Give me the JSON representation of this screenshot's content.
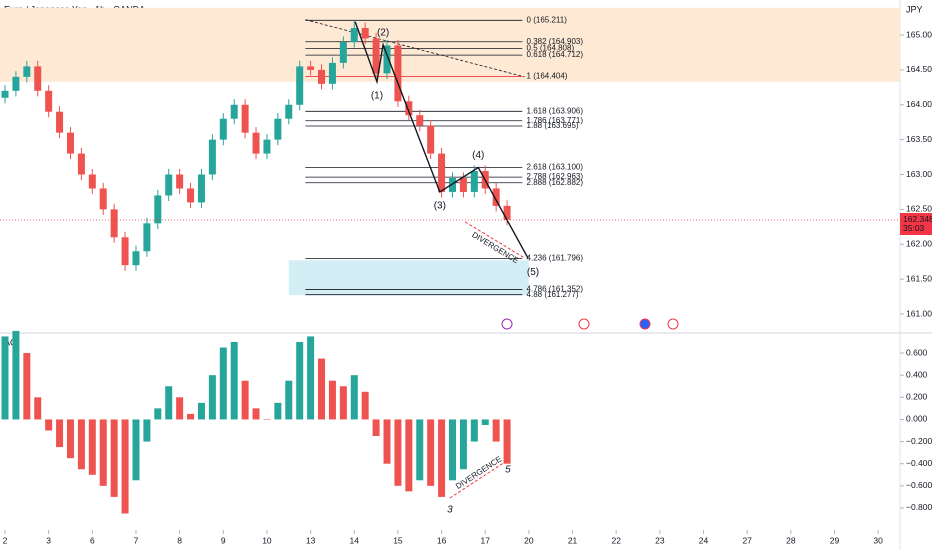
{
  "header": {
    "title": "Euro / Japanese Yen · 1h · OANDA",
    "currency": "JPY"
  },
  "chart_data": [
    {
      "type": "candlestick",
      "xlim": [
        -0.1145,
        20.5
      ],
      "ylim": [
        160.742,
        165.502
      ],
      "xticks": [
        {
          "value": 0,
          "label": "2"
        },
        {
          "value": 1,
          "label": "3"
        },
        {
          "value": 2,
          "label": "6"
        },
        {
          "value": 3,
          "label": "7"
        },
        {
          "value": 4,
          "label": "8"
        },
        {
          "value": 5,
          "label": "9"
        },
        {
          "value": 6,
          "label": "10"
        },
        {
          "value": 7,
          "label": "13"
        },
        {
          "value": 8,
          "label": "14"
        },
        {
          "value": 9,
          "label": "15"
        },
        {
          "value": 10,
          "label": "16"
        },
        {
          "value": 11,
          "label": "17"
        },
        {
          "value": 12,
          "label": "20"
        },
        {
          "value": 13,
          "label": "21"
        },
        {
          "value": 14,
          "label": "22"
        },
        {
          "value": 15,
          "label": "23"
        },
        {
          "value": 16,
          "label": "24"
        },
        {
          "value": 17,
          "label": "27"
        },
        {
          "value": 18,
          "label": "28"
        },
        {
          "value": 19,
          "label": "29"
        },
        {
          "value": 20,
          "label": "30"
        }
      ],
      "yticks": [
        {
          "value": 165,
          "label": "165.000"
        },
        {
          "value": 164.5,
          "label": "164.500"
        },
        {
          "value": 164,
          "label": "164.000"
        },
        {
          "value": 163.5,
          "label": "163.500"
        },
        {
          "value": 163,
          "label": "163.000"
        },
        {
          "value": 162.5,
          "label": "162.500"
        },
        {
          "value": 162,
          "label": "162.000"
        },
        {
          "value": 161.5,
          "label": "161.500"
        },
        {
          "value": 161,
          "label": "161.000"
        }
      ],
      "up_color": "#26a69a",
      "down_color": "#ef5350",
      "x": [
        0,
        0.25,
        0.5,
        0.75,
        1,
        1.25,
        1.5,
        1.75,
        2,
        2.25,
        2.5,
        2.75,
        3,
        3.25,
        3.5,
        3.75,
        4,
        4.25,
        4.5,
        4.75,
        5,
        5.25,
        5.5,
        5.75,
        6,
        6.25,
        6.5,
        6.75,
        7,
        7.25,
        7.5,
        7.75,
        8,
        8.25,
        8.5,
        8.75,
        9,
        9.25,
        9.5,
        9.75,
        10,
        10.25,
        10.5,
        10.75,
        11,
        11.25,
        11.5
      ],
      "open": [
        164.1,
        164.2,
        164.4,
        164.55,
        164.2,
        163.9,
        163.6,
        163.3,
        163.0,
        162.8,
        162.5,
        162.1,
        161.7,
        161.9,
        162.3,
        162.7,
        163.0,
        162.8,
        162.6,
        163.0,
        163.5,
        163.8,
        164.0,
        163.6,
        163.3,
        163.5,
        163.8,
        164.0,
        164.55,
        164.5,
        164.3,
        164.6,
        164.9,
        165.1,
        164.95,
        164.45,
        164.85,
        164.05,
        163.85,
        163.7,
        163.3,
        162.75,
        162.95,
        162.75,
        163.05,
        162.8,
        162.55
      ],
      "high": [
        164.28,
        164.48,
        164.63,
        164.63,
        164.28,
        163.98,
        163.68,
        163.38,
        163.08,
        162.88,
        162.58,
        162.18,
        161.98,
        162.38,
        162.78,
        163.08,
        163.08,
        162.88,
        163.08,
        163.58,
        163.88,
        164.08,
        164.08,
        163.68,
        163.58,
        163.88,
        164.08,
        164.63,
        164.63,
        164.58,
        164.68,
        164.98,
        165.21,
        165.18,
        165.03,
        164.93,
        164.93,
        164.13,
        163.93,
        163.78,
        163.38,
        163.03,
        163.03,
        163.13,
        163.13,
        162.88,
        162.63
      ],
      "low": [
        164.02,
        164.12,
        164.32,
        164.12,
        163.82,
        163.52,
        163.22,
        162.92,
        162.72,
        162.42,
        162.02,
        161.62,
        161.62,
        161.82,
        162.22,
        162.62,
        162.72,
        162.52,
        162.52,
        162.92,
        163.42,
        163.72,
        163.52,
        163.22,
        163.22,
        163.42,
        163.72,
        163.92,
        164.42,
        164.22,
        164.22,
        164.52,
        164.82,
        164.87,
        164.37,
        164.37,
        163.97,
        163.77,
        163.62,
        163.22,
        162.67,
        162.67,
        162.67,
        162.67,
        162.72,
        162.47,
        162.27
      ],
      "close": [
        164.2,
        164.4,
        164.55,
        164.2,
        163.9,
        163.6,
        163.3,
        163.0,
        162.8,
        162.5,
        162.1,
        161.7,
        161.9,
        162.3,
        162.7,
        163.0,
        162.8,
        162.6,
        163.0,
        163.5,
        163.8,
        164.0,
        163.6,
        163.3,
        163.5,
        163.8,
        164.0,
        164.55,
        164.5,
        164.3,
        164.6,
        164.9,
        165.1,
        164.95,
        164.45,
        164.85,
        164.05,
        163.85,
        163.7,
        163.3,
        162.75,
        162.95,
        162.75,
        163.05,
        162.8,
        162.55,
        162.35
      ],
      "current_price": {
        "value": 162.348,
        "label": "162.348",
        "countdown": "35:03",
        "color": "#f23645"
      },
      "zones": [
        {
          "from": 164.33,
          "to": 165.39,
          "color": "#fde9d4"
        },
        {
          "from": 161.27,
          "to": 161.77,
          "color": "#d4eef5"
        }
      ],
      "fib_levels": [
        {
          "label": "0 (165.211)",
          "price": 165.211
        },
        {
          "label": "0.382 (164.903)",
          "price": 164.903
        },
        {
          "label": "0.5 (164.808)",
          "price": 164.808
        },
        {
          "label": "0.618 (164.712)",
          "price": 164.712
        },
        {
          "label": "1 (164.404)",
          "price": 164.404,
          "color": "#f23645"
        },
        {
          "label": "1.618 (163.906)",
          "price": 163.906
        },
        {
          "label": "1.786 (163.771)",
          "price": 163.771
        },
        {
          "label": "1.88 (163.695)",
          "price": 163.695
        },
        {
          "label": "2.618 (163.100)",
          "price": 163.1
        },
        {
          "label": "2.788 (162.963)",
          "price": 162.963
        },
        {
          "label": "2.888 (162.882)",
          "price": 162.882
        },
        {
          "label": "4.236 (161.796)",
          "price": 161.796
        },
        {
          "label": "4.786 (161.352)",
          "price": 161.352
        },
        {
          "label": "4.88 (161.277)",
          "price": 161.277
        }
      ],
      "wave": {
        "x": [
          8.02,
          8.52,
          8.66,
          9.96,
          10.84,
          11.98
        ],
        "price": [
          165.19,
          164.33,
          164.86,
          162.75,
          163.1,
          161.8
        ],
        "labels": [
          null,
          "(1)",
          "(2)",
          "(3)",
          "(4)",
          "(5)"
        ]
      },
      "trendline": {
        "x": [
          6.88,
          11.9
        ],
        "price": [
          165.22,
          164.4
        ]
      },
      "divergence": {
        "label": "DIVERGENCE",
        "x": [
          10.54,
          11.91
        ],
        "price": [
          162.32,
          161.8
        ],
        "color": "#f23645"
      }
    },
    {
      "type": "histogram",
      "title": "AO",
      "xlim": [
        -0.1145,
        20.5
      ],
      "ylim": [
        -0.999,
        0.763
      ],
      "yticks": [
        {
          "value": 0.6,
          "label": "0.600"
        },
        {
          "value": 0.4,
          "label": "0.400"
        },
        {
          "value": 0.2,
          "label": "0.200"
        },
        {
          "value": 0,
          "label": "0.000"
        },
        {
          "value": -0.2,
          "label": "−0.200"
        },
        {
          "value": -0.4,
          "label": "−0.400"
        },
        {
          "value": -0.6,
          "label": "−0.600"
        },
        {
          "value": -0.8,
          "label": "−0.800"
        }
      ],
      "up_color": "#26a69a",
      "down_color": "#ef5350",
      "x": [
        0,
        0.25,
        0.5,
        0.75,
        1,
        1.25,
        1.5,
        1.75,
        2,
        2.25,
        2.5,
        2.75,
        3,
        3.25,
        3.5,
        3.75,
        4,
        4.25,
        4.5,
        4.75,
        5,
        5.25,
        5.5,
        5.75,
        6,
        6.25,
        6.5,
        6.75,
        7,
        7.25,
        7.5,
        7.75,
        8,
        8.25,
        8.5,
        8.75,
        9,
        9.25,
        9.5,
        9.75,
        10,
        10.25,
        10.5,
        10.75,
        11,
        11.25,
        11.5
      ],
      "values": [
        0.75,
        0.8,
        0.6,
        0.2,
        -0.1,
        -0.25,
        -0.35,
        -0.45,
        -0.5,
        -0.6,
        -0.7,
        -0.85,
        -0.55,
        -0.2,
        0.1,
        0.3,
        0.2,
        0.05,
        0.15,
        0.4,
        0.65,
        0.7,
        0.35,
        0.1,
        0.0,
        0.15,
        0.35,
        0.7,
        0.75,
        0.55,
        0.35,
        0.3,
        0.4,
        0.25,
        -0.15,
        -0.4,
        -0.6,
        -0.65,
        -0.55,
        -0.6,
        -0.7,
        -0.55,
        -0.45,
        -0.2,
        -0.05,
        -0.2,
        -0.4
      ],
      "divergence": {
        "label": "DIVERGENCE",
        "x": [
          10.19,
          11.52
        ],
        "values": [
          -0.71,
          -0.367
        ],
        "point_labels": [
          "3",
          "5"
        ],
        "color": "#f23645"
      }
    }
  ]
}
